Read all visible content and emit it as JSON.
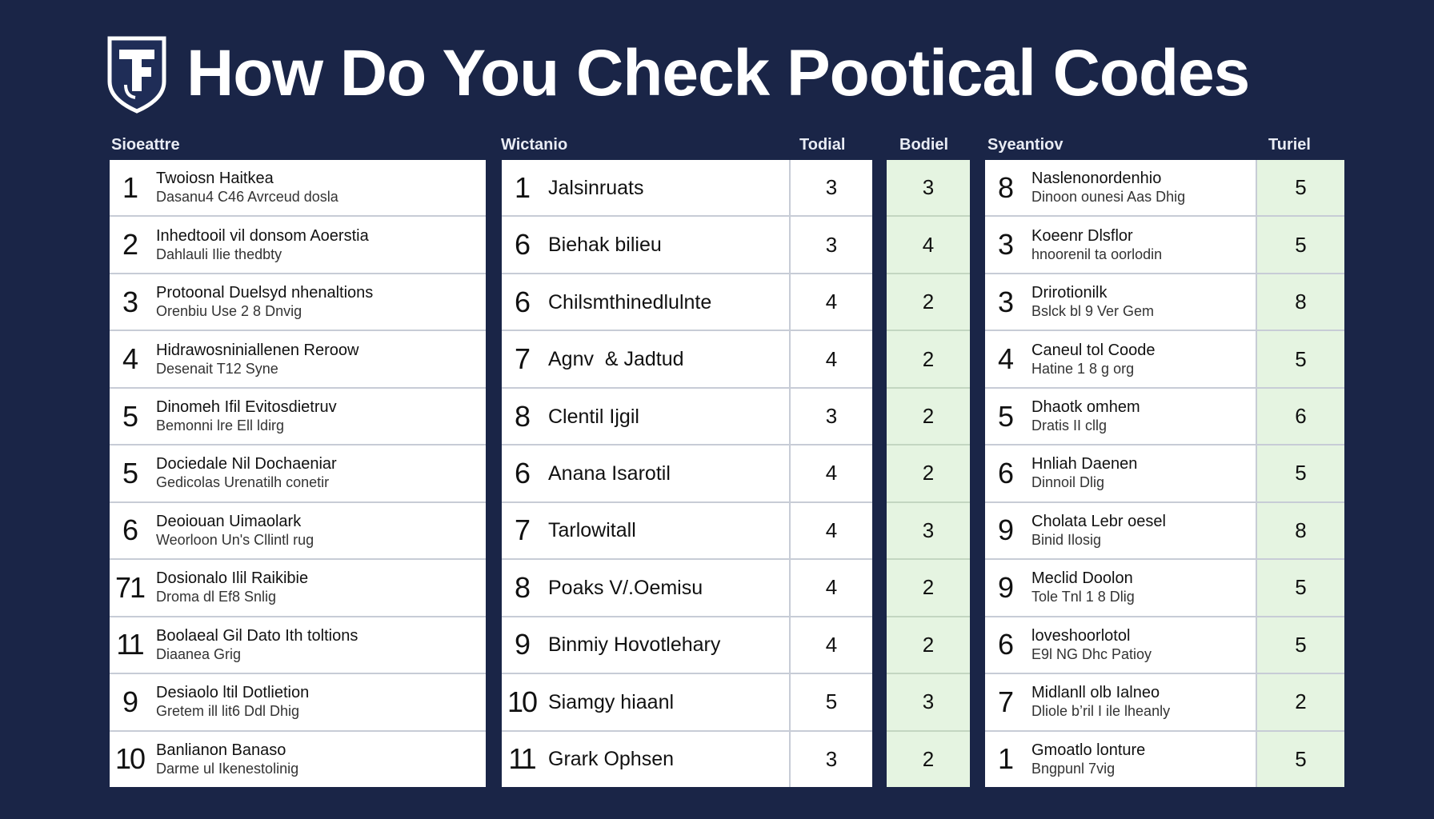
{
  "title": "How Do You Check Pootical Codes",
  "logo": {
    "icon": "shield-logo-icon",
    "color": "#ffffff"
  },
  "colors": {
    "background": "#1a2547",
    "panel": "#ffffff",
    "highlight": "#e5f4e1"
  },
  "headers": {
    "left": "Sioeattre",
    "mid": "Wictanio",
    "mid_total": "Todial",
    "score": "Bodiel",
    "right": "Syeantiov",
    "right_total": "Turiel"
  },
  "left_rows": [
    {
      "num": "1",
      "line1": "Twoiosn Haitkea",
      "line2": "Dasanu4 C46 Avrceud dosla"
    },
    {
      "num": "2",
      "line1": "Inhedtooil vil donsom Aoerstia",
      "line2": "Dahlauli Ilie thedbty"
    },
    {
      "num": "3",
      "line1": "Protoonal Duelsyd nhenaltions",
      "line2": "Orenbiu Use 2 8 Dnvig"
    },
    {
      "num": "4",
      "line1": "Hidrawosniniallenen Reroow",
      "line2": "Desenait T12 Syne"
    },
    {
      "num": "5",
      "line1": "Dinomeh Ifil Evitosdietruv",
      "line2": "Bemonni lre Ell ldirg"
    },
    {
      "num": "5",
      "line1": "Dociedale Nil Dochaeniar",
      "line2": "Gedicolas Urenatilh conetir"
    },
    {
      "num": "6",
      "line1": "Deoiouan Uimaolark",
      "line2": "Weorloon Un's Cllintl rug"
    },
    {
      "num": "71",
      "line1": "Dosionalo Ilil Raikibie",
      "line2": "Droma dl Ef8 Snlig"
    },
    {
      "num": "11",
      "line1": "Boolaeal Gil Dato Ith toltions",
      "line2": "Diaanea Grig"
    },
    {
      "num": "9",
      "line1": "Desiaolo ltil Dotlietion",
      "line2": "Gretem ill lit6 Ddl Dhig"
    },
    {
      "num": "10",
      "line1": "Banlianon Banaso",
      "line2": "Darme ul Ikenestolinig"
    }
  ],
  "mid_rows": [
    {
      "num": "1",
      "label": "Jalsinruats",
      "total": "3",
      "score": "3"
    },
    {
      "num": "6",
      "label": "Biehak bilieu",
      "total": "3",
      "score": "4"
    },
    {
      "num": "6",
      "label": "Chilsmthinedlulnte",
      "total": "4",
      "score": "2"
    },
    {
      "num": "7",
      "label": "Agnv  & Jadtud",
      "total": "4",
      "score": "2"
    },
    {
      "num": "8",
      "label": "Clentil Ijgil",
      "total": "3",
      "score": "2"
    },
    {
      "num": "6",
      "label": "Anana Isarotil",
      "total": "4",
      "score": "2"
    },
    {
      "num": "7",
      "label": "Tarlowitall",
      "total": "4",
      "score": "3"
    },
    {
      "num": "8",
      "label": "Poaks V/.Oemisu",
      "total": "4",
      "score": "2"
    },
    {
      "num": "9",
      "label": "Binmiy Hovotlehary",
      "total": "4",
      "score": "2"
    },
    {
      "num": "10",
      "label": "Siamgy hiaanl",
      "total": "5",
      "score": "3"
    },
    {
      "num": "11",
      "label": "Grark Ophsen",
      "total": "3",
      "score": "2"
    }
  ],
  "right_rows": [
    {
      "num": "8",
      "line1": "Naslenonordenhio",
      "line2": "Dinoon ounesi Aas Dhig",
      "total": "5"
    },
    {
      "num": "3",
      "line1": "Koeenr Dlsflor",
      "line2": "hnoorenil ta oorlodin",
      "total": "5"
    },
    {
      "num": "3",
      "line1": "Drirotionilk",
      "line2": "Bslck bl 9 Ver Gem",
      "total": "8"
    },
    {
      "num": "4",
      "line1": "Caneul tol Coode",
      "line2": "Hatine 1 8 g org",
      "total": "5"
    },
    {
      "num": "5",
      "line1": "Dhaotk omhem",
      "line2": "Dratis II cllg",
      "total": "6"
    },
    {
      "num": "6",
      "line1": "Hnliah Daenen",
      "line2": "Dinnoil Dlig",
      "total": "5"
    },
    {
      "num": "9",
      "line1": "Cholata Lebr oesel",
      "line2": "Binid Ilosig",
      "total": "8"
    },
    {
      "num": "9",
      "line1": "Meclid Doolon",
      "line2": "Tole Tnl 1 8 Dlig",
      "total": "5"
    },
    {
      "num": "6",
      "line1": "loveshoorlotol",
      "line2": "E9l NG Dhc Patioy",
      "total": "5"
    },
    {
      "num": "7",
      "line1": "Midlanll olb Ialneo",
      "line2": "Dliole b’ril I ile lheanly",
      "total": "2"
    },
    {
      "num": "1",
      "line1": "Gmoatlo lonture",
      "line2": "Bngpunl 7vig",
      "total": "5"
    }
  ]
}
